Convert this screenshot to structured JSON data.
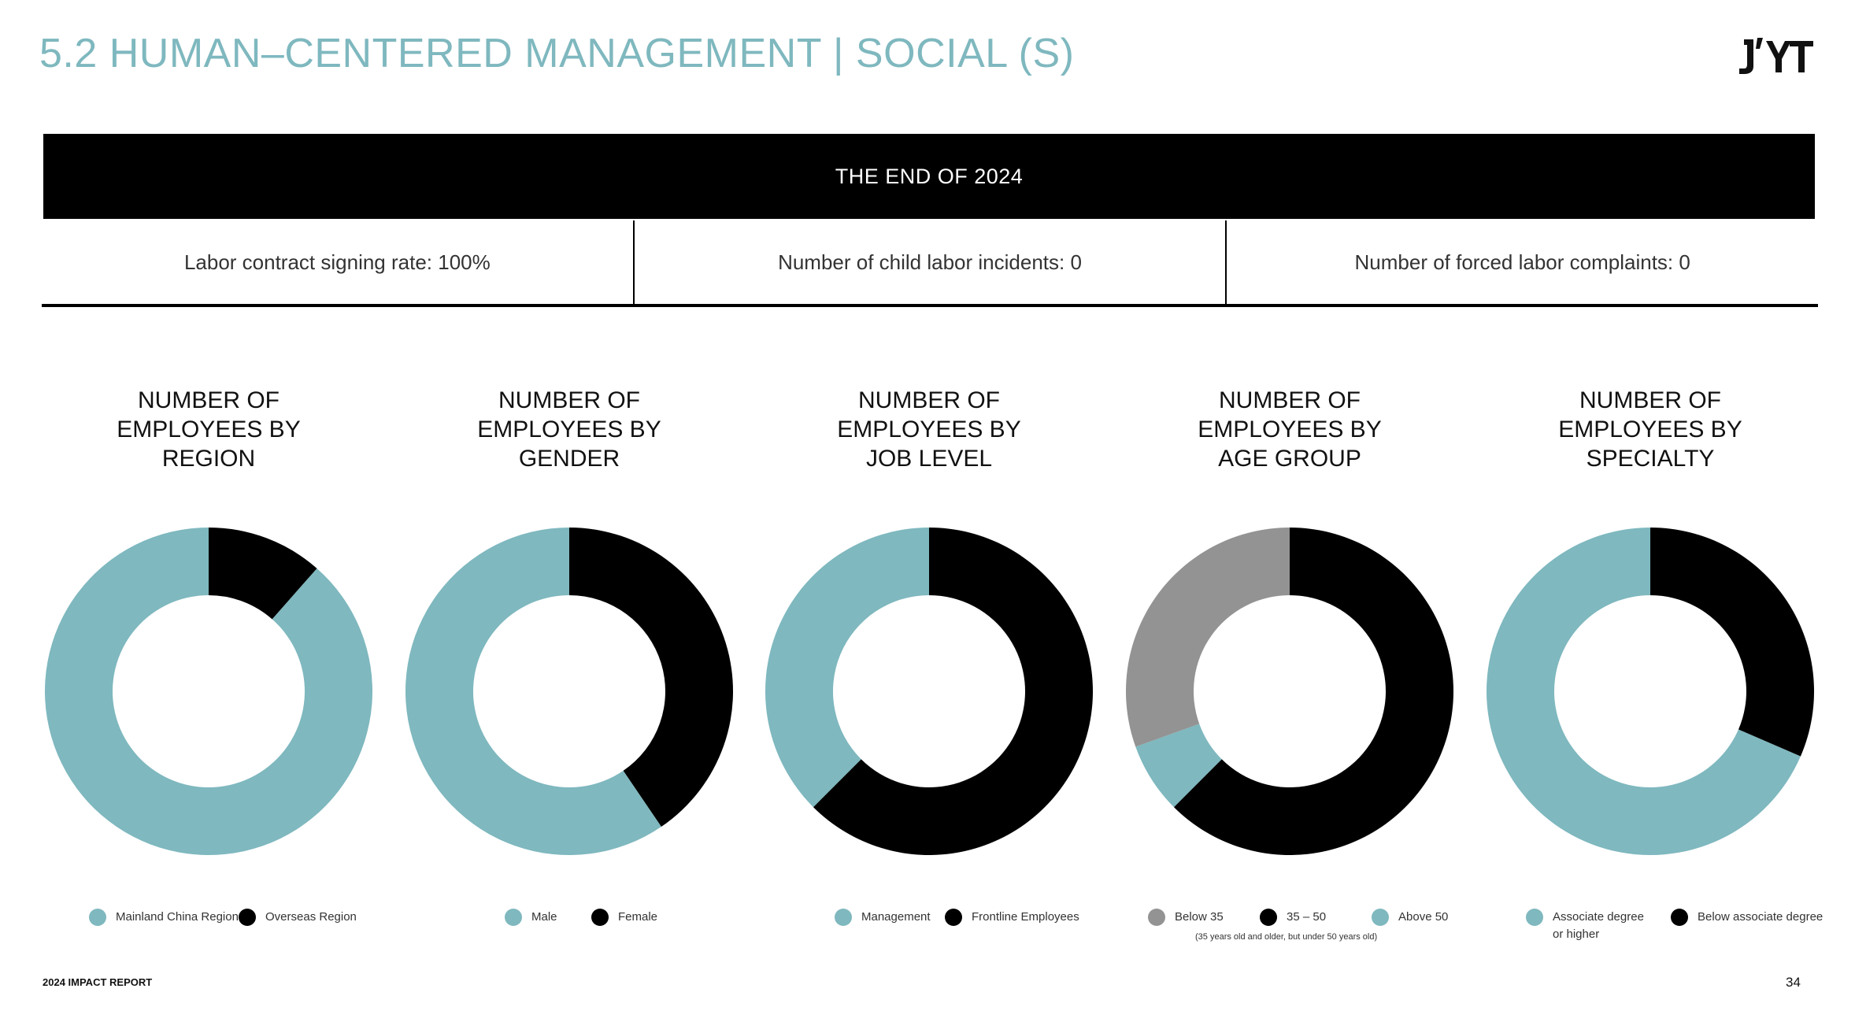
{
  "header": {
    "title": "5.2 HUMAN–CENTERED MANAGEMENT |  SOCIAL (S)"
  },
  "logo": {
    "name": "jyt-logo-icon"
  },
  "banner": {
    "label": "THE END OF 2024"
  },
  "stats": [
    {
      "label": "Labor contract signing rate: 100%"
    },
    {
      "label": "Number of child labor incidents: 0"
    },
    {
      "label": "Number of forced labor complaints: 0"
    }
  ],
  "colors": {
    "teal": "#7fb8bf",
    "black": "#000000",
    "gray": "#939393",
    "title_teal": "#7fb8bf"
  },
  "chart_data": [
    {
      "type": "pie",
      "title_lines": [
        "NUMBER OF",
        "EMPLOYEES BY",
        "REGION"
      ],
      "categories": [
        "Mainland China Region",
        "Overseas Region"
      ],
      "values": [
        88.5,
        11.5
      ],
      "colors": [
        "#7fb8bf",
        "#000000"
      ],
      "start_order": [
        1,
        0
      ]
    },
    {
      "type": "pie",
      "title_lines": [
        "NUMBER OF",
        "EMPLOYEES BY",
        "GENDER"
      ],
      "categories": [
        "Male",
        "Female"
      ],
      "values": [
        59.5,
        40.5
      ],
      "colors": [
        "#7fb8bf",
        "#000000"
      ],
      "start_order": [
        1,
        0
      ]
    },
    {
      "type": "pie",
      "title_lines": [
        "NUMBER OF",
        "EMPLOYEES BY",
        "JOB LEVEL"
      ],
      "categories": [
        "Management",
        "Frontline Employees"
      ],
      "values": [
        37.5,
        62.5
      ],
      "colors": [
        "#7fb8bf",
        "#000000"
      ],
      "start_order": [
        1,
        0
      ]
    },
    {
      "type": "pie",
      "title_lines": [
        "NUMBER OF",
        "EMPLOYEES BY",
        "AGE GROUP"
      ],
      "categories": [
        "Below 35",
        "35 – 50",
        "Above 50"
      ],
      "category_note": "(35 years old and older, but under 50 years old)",
      "values": [
        30.5,
        62.5,
        7.0
      ],
      "colors": [
        "#939393",
        "#000000",
        "#7fb8bf"
      ],
      "start_order": [
        1,
        2,
        0
      ]
    },
    {
      "type": "pie",
      "title_lines": [
        "NUMBER OF",
        "EMPLOYEES BY",
        "SPECIALTY"
      ],
      "categories": [
        "Associate degree or higher",
        "Below associate degree"
      ],
      "category_lines": [
        [
          "Associate degree",
          "or higher"
        ],
        [
          "Below associate degree"
        ]
      ],
      "values": [
        68.5,
        31.5
      ],
      "colors": [
        "#7fb8bf",
        "#000000"
      ],
      "start_order": [
        1,
        0
      ]
    }
  ],
  "footer": {
    "report": "2024 IMPACT REPORT",
    "page": "34"
  }
}
